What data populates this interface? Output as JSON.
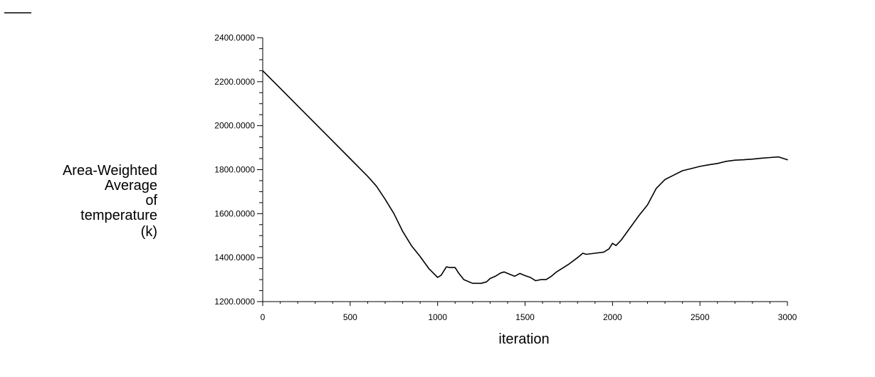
{
  "chart_data": {
    "type": "line",
    "title": "",
    "xlabel": "iteration",
    "ylabel_lines": [
      "Area-Weighted",
      "Average",
      "of",
      "temperature",
      "(k)"
    ],
    "xlim": [
      0,
      3000
    ],
    "ylim": [
      1200,
      2400
    ],
    "x_ticks": [
      0,
      500,
      1000,
      1500,
      2000,
      2500,
      3000
    ],
    "x_tick_labels": [
      "0",
      "500",
      "1000",
      "1500",
      "2000",
      "2500",
      "3000"
    ],
    "y_ticks": [
      1200,
      1400,
      1600,
      1800,
      2000,
      2200,
      2400
    ],
    "y_tick_labels": [
      "1200.0000",
      "1400.0000",
      "1600.0000",
      "1800.0000",
      "2000.0000",
      "2200.0000",
      "2400.0000"
    ],
    "grid": false,
    "legend": "none",
    "series": [
      {
        "color": "#000000",
        "x": [
          0,
          100,
          200,
          300,
          400,
          500,
          600,
          650,
          700,
          750,
          800,
          850,
          900,
          950,
          1000,
          1020,
          1050,
          1070,
          1100,
          1120,
          1150,
          1200,
          1250,
          1280,
          1300,
          1330,
          1360,
          1380,
          1410,
          1440,
          1470,
          1500,
          1530,
          1560,
          1590,
          1620,
          1650,
          1680,
          1700,
          1750,
          1800,
          1830,
          1850,
          1900,
          1950,
          1980,
          2000,
          2020,
          2050,
          2100,
          2150,
          2200,
          2250,
          2300,
          2350,
          2400,
          2450,
          2500,
          2550,
          2600,
          2650,
          2700,
          2750,
          2800,
          2850,
          2900,
          2950,
          3000
        ],
        "y": [
          2250,
          2170,
          2090,
          2010,
          1930,
          1850,
          1770,
          1725,
          1665,
          1600,
          1520,
          1455,
          1405,
          1350,
          1310,
          1320,
          1358,
          1355,
          1355,
          1330,
          1300,
          1283,
          1283,
          1290,
          1305,
          1315,
          1330,
          1335,
          1325,
          1315,
          1328,
          1318,
          1310,
          1295,
          1300,
          1300,
          1315,
          1335,
          1345,
          1370,
          1400,
          1420,
          1415,
          1420,
          1425,
          1440,
          1465,
          1455,
          1480,
          1535,
          1590,
          1640,
          1715,
          1755,
          1775,
          1795,
          1805,
          1815,
          1822,
          1828,
          1838,
          1843,
          1845,
          1848,
          1852,
          1855,
          1858,
          1845
        ]
      }
    ]
  }
}
